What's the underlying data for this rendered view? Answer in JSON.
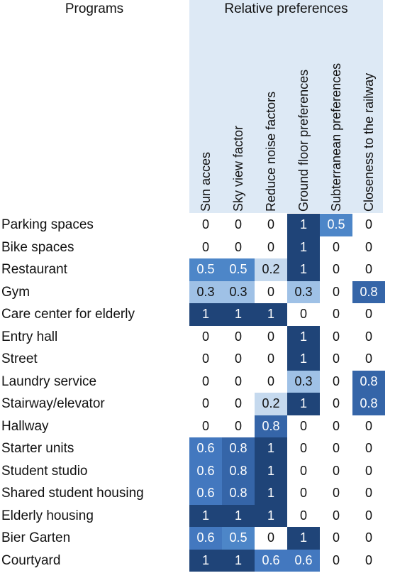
{
  "chart_data": {
    "type": "heatmap",
    "left_header": "Programs",
    "right_header": "Relative preferences",
    "columns": [
      "Sun acces",
      "Sky view factor",
      "Reduce noise factors",
      "Ground floor preferences",
      "Subterranean preferences",
      "Closeness to the railway"
    ],
    "rows": [
      {
        "name": "Parking spaces",
        "values": [
          0,
          0,
          0,
          1,
          0.5,
          0
        ]
      },
      {
        "name": "Bike spaces",
        "values": [
          0,
          0,
          0,
          1,
          0,
          0
        ]
      },
      {
        "name": "Restaurant",
        "values": [
          0.5,
          0.5,
          0.2,
          1,
          0,
          0
        ]
      },
      {
        "name": "Gym",
        "values": [
          0.3,
          0.3,
          0,
          0.3,
          0,
          0.8
        ]
      },
      {
        "name": "Care center for elderly",
        "values": [
          1,
          1,
          1,
          0,
          0,
          0
        ]
      },
      {
        "name": "Entry hall",
        "values": [
          0,
          0,
          0,
          1,
          0,
          0
        ]
      },
      {
        "name": "Street",
        "values": [
          0,
          0,
          0,
          1,
          0,
          0
        ]
      },
      {
        "name": "Laundry service",
        "values": [
          0,
          0,
          0,
          0.3,
          0,
          0.8
        ]
      },
      {
        "name": "Stairway/elevator",
        "values": [
          0,
          0,
          0.2,
          1,
          0,
          0.8
        ]
      },
      {
        "name": "Hallway",
        "values": [
          0,
          0,
          0.8,
          0,
          0,
          0
        ]
      },
      {
        "name": "Starter units",
        "values": [
          0.6,
          0.8,
          1,
          0,
          0,
          0
        ]
      },
      {
        "name": "Student studio",
        "values": [
          0.6,
          0.8,
          1,
          0,
          0,
          0
        ]
      },
      {
        "name": "Shared student housing",
        "values": [
          0.6,
          0.8,
          1,
          0,
          0,
          0
        ]
      },
      {
        "name": "Elderly housing",
        "values": [
          1,
          1,
          1,
          0,
          0,
          0
        ]
      },
      {
        "name": "Bier Garten",
        "values": [
          0.6,
          0.5,
          0,
          1,
          0,
          0
        ]
      },
      {
        "name": "Courtyard",
        "values": [
          1,
          1,
          0.6,
          0.6,
          0,
          0
        ]
      }
    ],
    "value_range": [
      0,
      1
    ],
    "colors": {
      "0.2": "#c5d9ee",
      "0.3": "#9fc1e6",
      "0.5": "#4d86c8",
      "0.6": "#4378bf",
      "0.8": "#3565a8",
      "1": "#1f4478",
      "text_light": "#ffffff",
      "text_dark": "#111111"
    }
  }
}
